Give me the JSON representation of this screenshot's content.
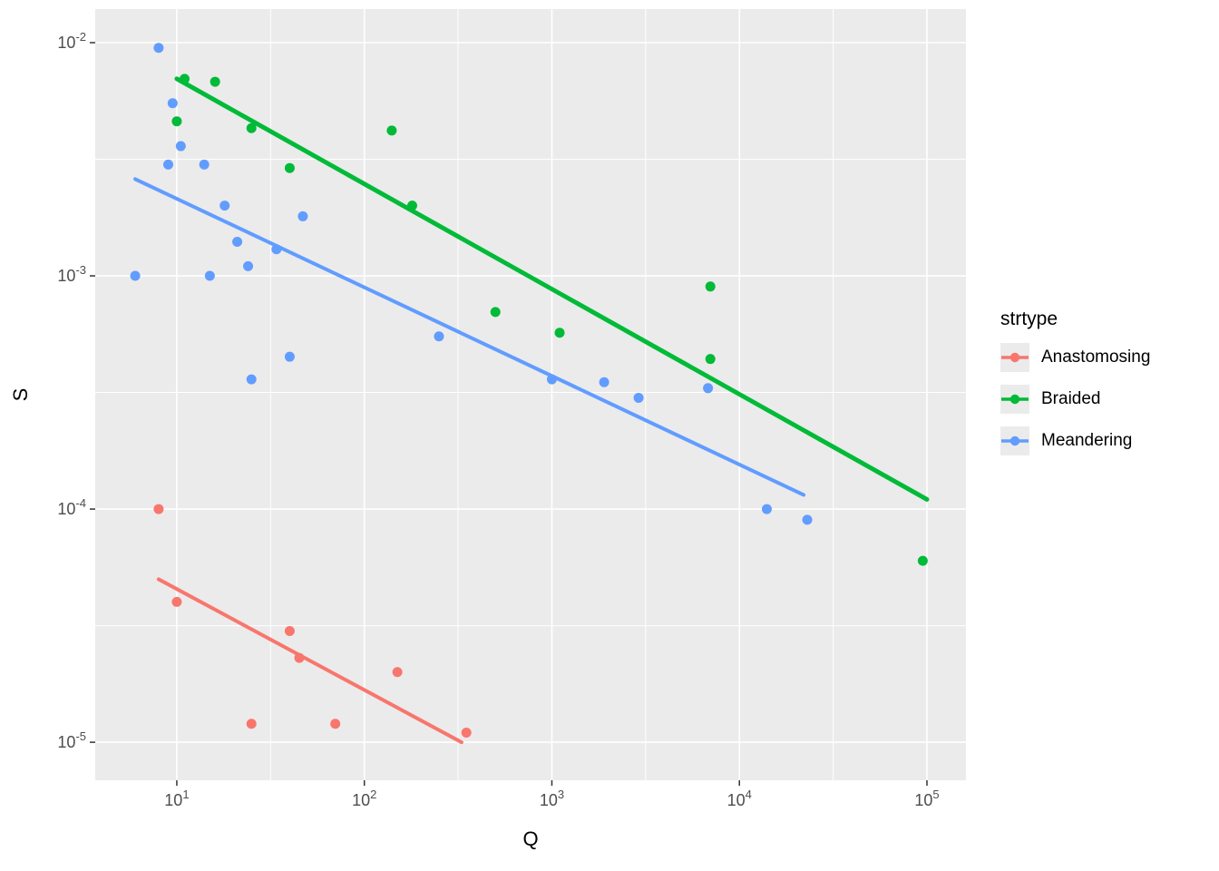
{
  "chart_data": {
    "type": "scatter",
    "title": "",
    "xlabel": "Q",
    "ylabel": "S",
    "legend_title": "strtype",
    "x_scale": "log10",
    "y_scale": "log10",
    "xlim_log": [
      0.565,
      5.208
    ],
    "ylim_log": [
      -5.163,
      -1.856
    ],
    "x_tick_exponents": [
      1,
      2,
      3,
      4,
      5
    ],
    "y_tick_exponents": [
      -2,
      -3,
      -4,
      -5
    ],
    "x_minor_exponents": [
      1.5,
      2.5,
      3.5,
      4.5
    ],
    "y_minor_exponents": [
      -2.5,
      -3.5,
      -4.5
    ],
    "theme": {
      "panel_bg": "#EBEBEB",
      "grid_color": "#FFFFFF",
      "tick_text_color": "#4D4D4D",
      "axis_title_color": "#000000",
      "tick_mark_color": "#333333"
    },
    "series": [
      {
        "name": "Anastomosing",
        "color": "#F8766D",
        "line_width": 4,
        "points": [
          [
            8,
            0.0001
          ],
          [
            10,
            4e-05
          ],
          [
            40,
            3e-05
          ],
          [
            45,
            2.3e-05
          ],
          [
            150,
            2e-05
          ],
          [
            25,
            1.2e-05
          ],
          [
            70,
            1.2e-05
          ],
          [
            350,
            1.1e-05
          ]
        ],
        "trend_line": {
          "x": [
            8,
            330
          ],
          "y": [
            5e-05,
            1e-05
          ]
        }
      },
      {
        "name": "Braided",
        "color": "#00BA38",
        "line_width": 5,
        "points": [
          [
            11,
            0.007
          ],
          [
            16,
            0.0068
          ],
          [
            10,
            0.0046
          ],
          [
            25,
            0.0043
          ],
          [
            140,
            0.0042
          ],
          [
            40,
            0.0029
          ],
          [
            180,
            0.002
          ],
          [
            500,
            0.0007
          ],
          [
            1100,
            0.00057
          ],
          [
            7000,
            0.0009
          ],
          [
            7000,
            0.00044
          ],
          [
            95000,
            6e-05
          ]
        ],
        "trend_line": {
          "x": [
            10,
            100000
          ],
          "y": [
            0.007,
            0.00011
          ]
        }
      },
      {
        "name": "Meandering",
        "color": "#619CFF",
        "line_width": 4,
        "points": [
          [
            8,
            0.0095
          ],
          [
            9.5,
            0.0055
          ],
          [
            10.5,
            0.0036
          ],
          [
            9,
            0.003
          ],
          [
            14,
            0.003
          ],
          [
            18,
            0.002
          ],
          [
            47,
            0.0018
          ],
          [
            21,
            0.0014
          ],
          [
            34,
            0.0013
          ],
          [
            24,
            0.0011
          ],
          [
            6,
            0.001
          ],
          [
            15,
            0.001
          ],
          [
            250,
            0.00055
          ],
          [
            40,
            0.00045
          ],
          [
            25,
            0.00036
          ],
          [
            1000,
            0.00036
          ],
          [
            1900,
            0.00035
          ],
          [
            2900,
            0.0003
          ],
          [
            6800,
            0.00033
          ],
          [
            14000,
            0.0001
          ],
          [
            23000,
            9e-05
          ]
        ],
        "trend_line": {
          "x": [
            6,
            22000
          ],
          "y": [
            0.0026,
            0.000115
          ]
        }
      }
    ]
  }
}
